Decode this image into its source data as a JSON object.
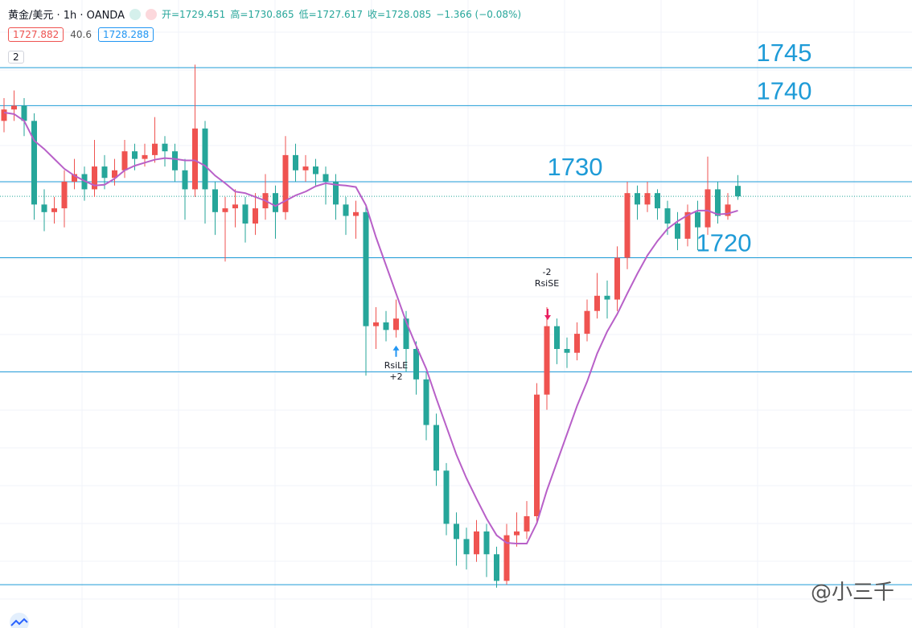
{
  "header": {
    "symbol": "黄金/美元 · 1h · OANDA",
    "open": "开=1729.451",
    "high": "高=1730.865",
    "low": "低=1727.617",
    "close": "收=1728.085",
    "change": "−1.366 (−0.08%)",
    "bid": "1727.882",
    "spread": "40.6",
    "ask": "1728.288",
    "indicators": "2"
  },
  "chart_data": {
    "type": "candlestick",
    "open": [
      1738,
      1739.5,
      1740,
      1738,
      1727,
      1726,
      1726.5,
      1730,
      1731,
      1729,
      1732,
      1730.5,
      1731.5,
      1734,
      1733,
      1733.5,
      1735,
      1734,
      1731.5,
      1729,
      1737,
      1729,
      1726,
      1726.5,
      1727,
      1724.5,
      1726.5,
      1728.5,
      1726,
      1733.5,
      1731.5,
      1732,
      1731,
      1730,
      1727,
      1725.5,
      1726,
      1711,
      1711.5,
      1710.5,
      1712,
      1708,
      1704,
      1698,
      1692,
      1685,
      1683,
      1681,
      1684,
      1681,
      1677.5,
      1683.5,
      1684,
      1686,
      1702,
      1711,
      1708,
      1707.5,
      1710,
      1713,
      1715,
      1714.5,
      1720,
      1728.5,
      1727,
      1728.5,
      1726.5,
      1724.5,
      1722.5,
      1726,
      1724,
      1729,
      1725.5,
      1729.451
    ],
    "high": [
      1741,
      1742,
      1741,
      1739,
      1729,
      1728,
      1731.5,
      1733,
      1732,
      1735.5,
      1733.5,
      1733,
      1735.5,
      1735,
      1735,
      1738.5,
      1736,
      1735,
      1733,
      1745.4,
      1738,
      1730,
      1728,
      1729,
      1728,
      1728.5,
      1731,
      1729.5,
      1736,
      1735,
      1733.5,
      1733,
      1732,
      1731,
      1728,
      1727.5,
      1727,
      1713.5,
      1713,
      1714.5,
      1713,
      1709,
      1705,
      1699.5,
      1693,
      1686.5,
      1684.5,
      1685.5,
      1685,
      1682,
      1685,
      1686.5,
      1688,
      1703.5,
      1713.5,
      1712,
      1709.5,
      1711.5,
      1714.5,
      1718,
      1717,
      1721.5,
      1730,
      1729.5,
      1730,
      1729,
      1727.5,
      1726,
      1727,
      1727.5,
      1733.3,
      1730,
      1728.5,
      1730.865
    ],
    "low": [
      1736.5,
      1738,
      1736,
      1725,
      1723.5,
      1724.5,
      1724,
      1729,
      1727.5,
      1728,
      1729,
      1729.5,
      1730.5,
      1731.5,
      1732,
      1732.5,
      1732,
      1730,
      1725,
      1728,
      1724.5,
      1723,
      1719.5,
      1724,
      1722,
      1723,
      1725,
      1722.5,
      1725,
      1730,
      1730,
      1729.5,
      1727,
      1725,
      1723,
      1722.5,
      1704.5,
      1708,
      1709,
      1709.5,
      1705,
      1702,
      1696,
      1690,
      1683.5,
      1679.5,
      1679,
      1680,
      1678,
      1676.6,
      1677,
      1682,
      1683,
      1685,
      1700,
      1706,
      1705.5,
      1706.5,
      1709,
      1712,
      1712,
      1713,
      1718.5,
      1725,
      1726,
      1725,
      1723,
      1721,
      1721.5,
      1721,
      1723,
      1724.5,
      1725,
      1727.617
    ],
    "close": [
      1739.5,
      1740,
      1738,
      1727,
      1726,
      1726.5,
      1730,
      1731,
      1729,
      1732,
      1730.5,
      1731.5,
      1734,
      1733,
      1733.5,
      1735,
      1734,
      1731.5,
      1729,
      1737,
      1729,
      1726,
      1726.5,
      1727,
      1724.5,
      1726.5,
      1728.5,
      1726,
      1733.5,
      1731.5,
      1732,
      1731,
      1730,
      1727,
      1725.5,
      1726,
      1711,
      1711.5,
      1710.5,
      1712,
      1708,
      1704,
      1698,
      1692,
      1685,
      1683,
      1681,
      1684,
      1681,
      1677.5,
      1683.5,
      1684,
      1686,
      1702,
      1711,
      1708,
      1707.5,
      1710,
      1713,
      1715,
      1714.5,
      1720,
      1728.5,
      1727,
      1728.5,
      1726.5,
      1724.5,
      1722.5,
      1726,
      1724,
      1729,
      1725.5,
      1727,
      1728.085
    ],
    "up_color": "#ef5350",
    "down_color": "#26a69a",
    "ma": {
      "color": "#b860c8",
      "values": [
        1739.1,
        1738.9,
        1738,
        1735.4,
        1734.3,
        1733,
        1731.7,
        1730.8,
        1730.1,
        1729.5,
        1729.6,
        1730.4,
        1731.5,
        1732.1,
        1732.5,
        1732.9,
        1733.1,
        1733,
        1732.8,
        1732.8,
        1732.1,
        1730.8,
        1729.8,
        1728.7,
        1728.5,
        1728,
        1727.5,
        1726.8,
        1727.5,
        1728.2,
        1728.7,
        1729.4,
        1729.8,
        1729.6,
        1729.5,
        1729.3,
        1726.9,
        1722.7,
        1719,
        1715.3,
        1711.6,
        1708.4,
        1705.4,
        1701.5,
        1697.8,
        1694.1,
        1691,
        1688.3,
        1685.7,
        1683.5,
        1682.5,
        1682.4,
        1682.4,
        1685.1,
        1689.4,
        1693.1,
        1696.8,
        1700.5,
        1703.7,
        1707.4,
        1710.3,
        1712.6,
        1715.3,
        1717.9,
        1720.3,
        1722.2,
        1723.8,
        1724.8,
        1725.6,
        1726.2,
        1726.2,
        1725.7,
        1725.8,
        1726.2
      ]
    },
    "ylim": [
      1671.3,
      1753.9
    ],
    "levels": [
      1745,
      1740,
      1730,
      1720
    ],
    "unlabeled_levels": [
      1705,
      1677
    ],
    "level_color": "#1e9bd7",
    "signals": [
      {
        "label": "RsiLE",
        "qty": "+2",
        "index": 39,
        "color": "#2196f3"
      },
      {
        "label": "RsiSE",
        "qty": "-2",
        "index": 54,
        "color": "#e91e63"
      }
    ]
  },
  "watermark": "@小三千"
}
